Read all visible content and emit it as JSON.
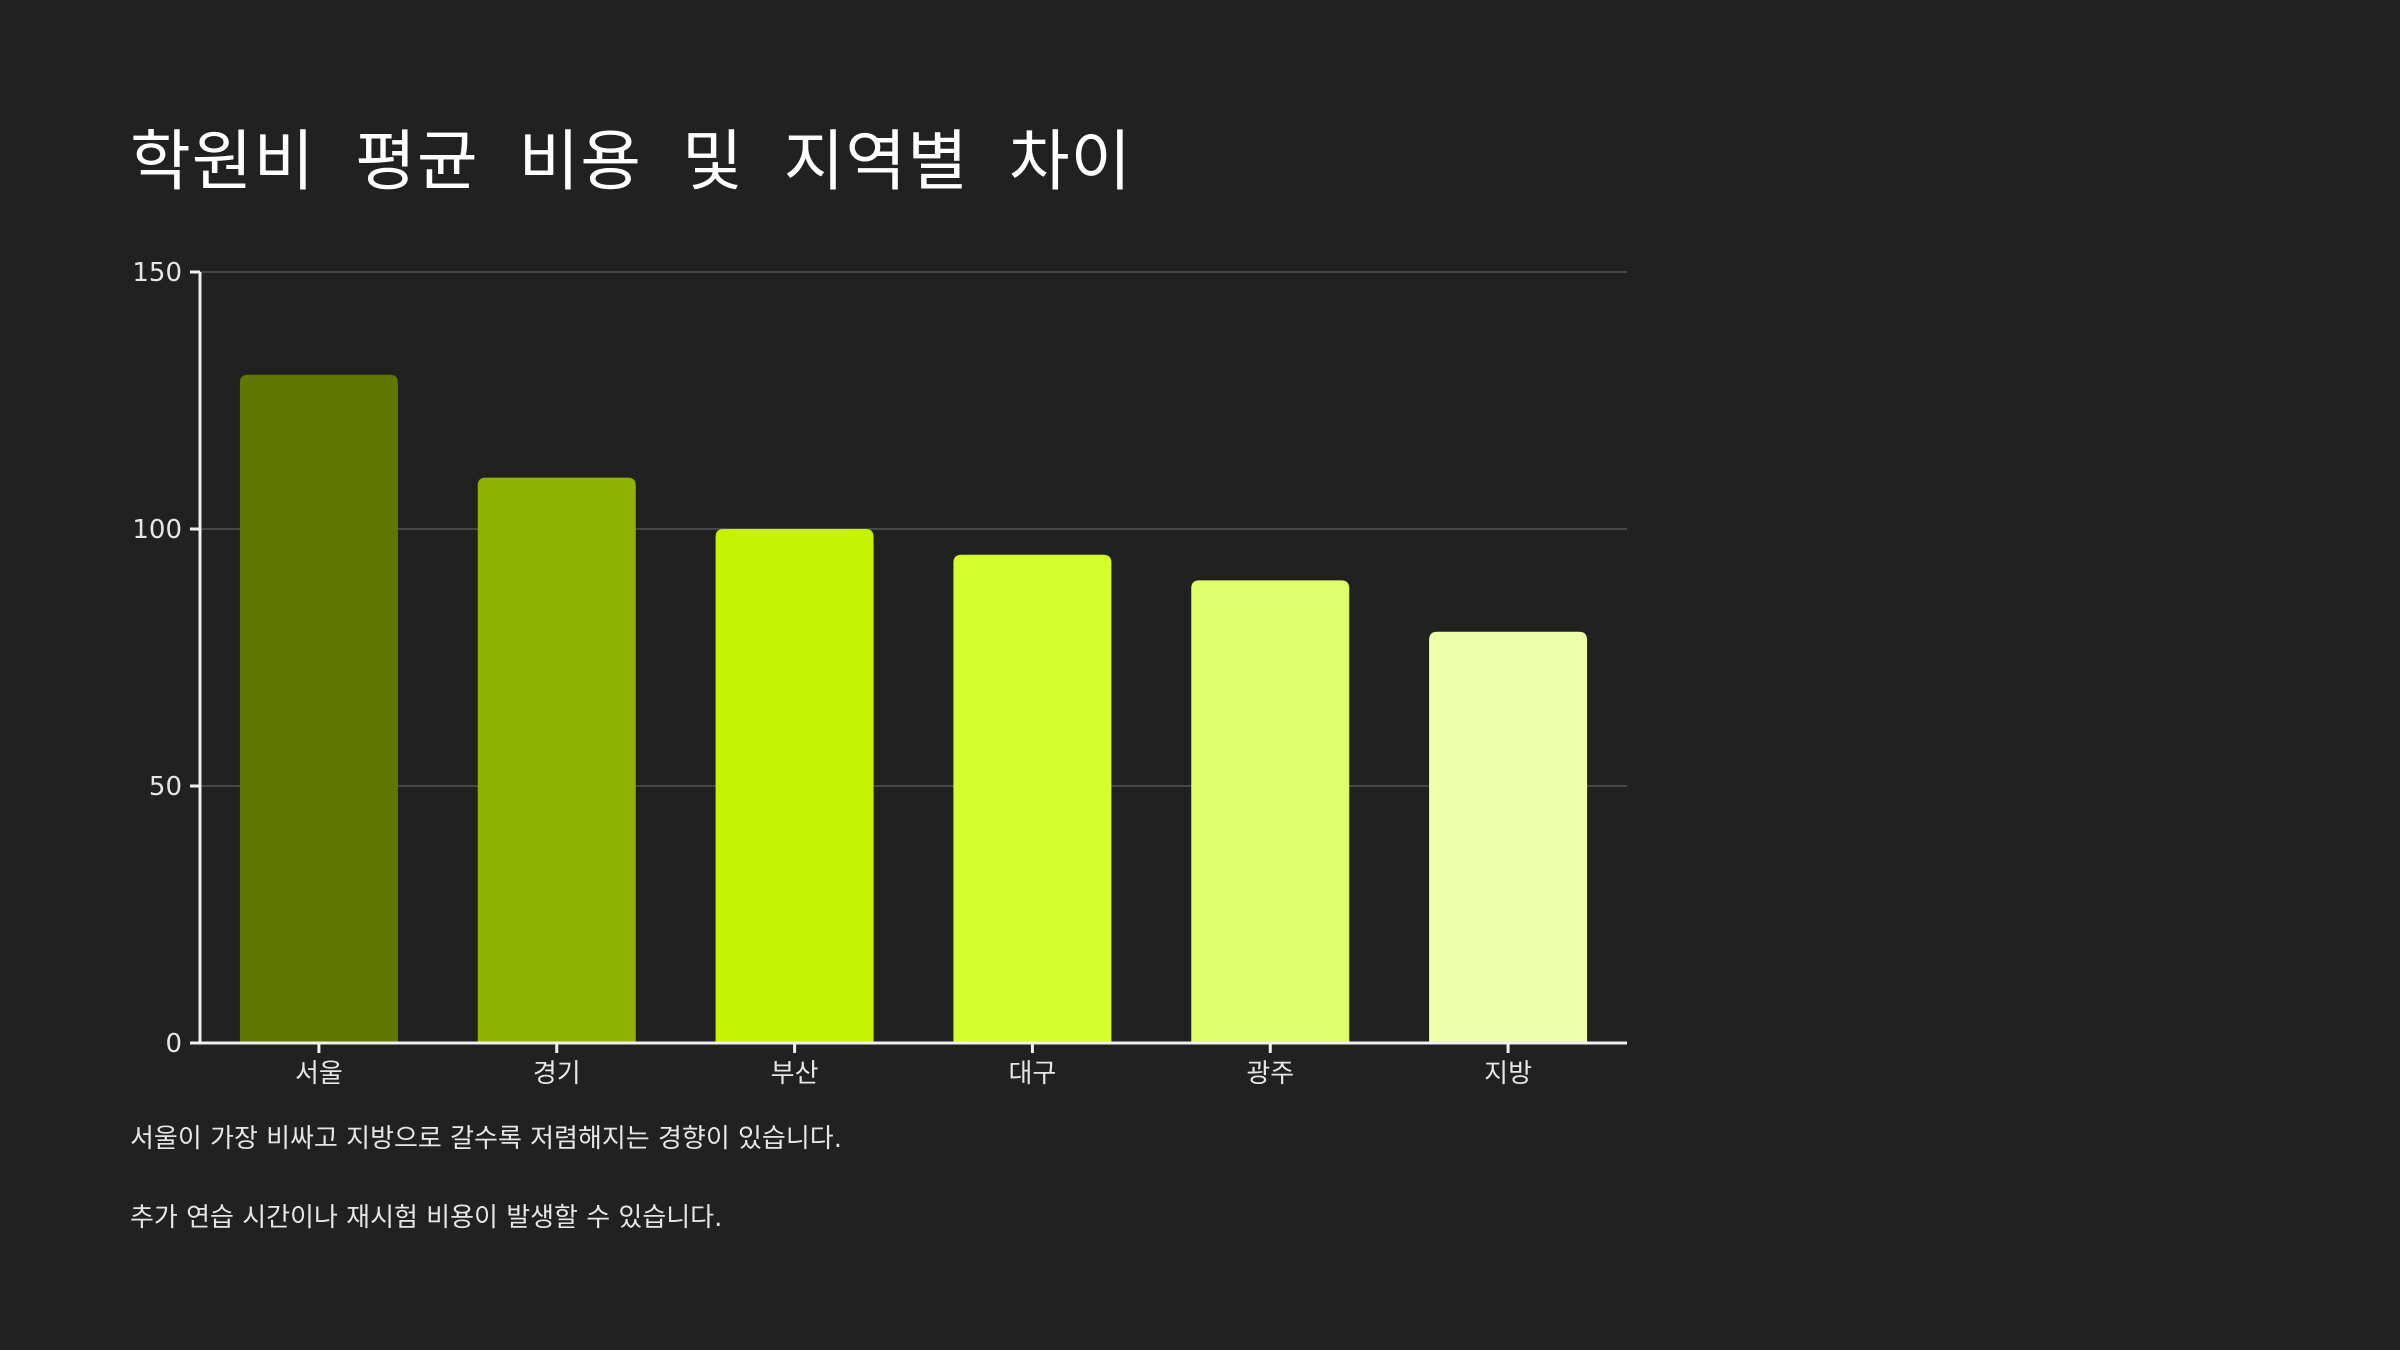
{
  "slide": {
    "title": "학원비 평균 비용 및 지역별 차이",
    "notes": [
      "서울이 가장 비싸고 지방으로 갈수록 저렴해지는 경향이 있습니다.",
      "추가 연습 시간이나 재시험 비용이 발생할 수 있습니다."
    ]
  },
  "chart_data": {
    "type": "bar",
    "title": "",
    "xlabel": "",
    "ylabel": "",
    "categories": [
      "서울",
      "경기",
      "부산",
      "대구",
      "광주",
      "지방"
    ],
    "values": [
      130,
      110,
      100,
      95,
      90,
      80
    ],
    "ylim": [
      0,
      150
    ],
    "yticks": [
      0,
      50,
      100,
      150
    ],
    "grid": true,
    "legend": "none",
    "colors": [
      "#617800",
      "#8fb300",
      "#c4f200",
      "#d4ff2a",
      "#e1ff6b",
      "#edffaa"
    ],
    "axis_color": "#f0f0f0",
    "grid_color": "#555555"
  }
}
